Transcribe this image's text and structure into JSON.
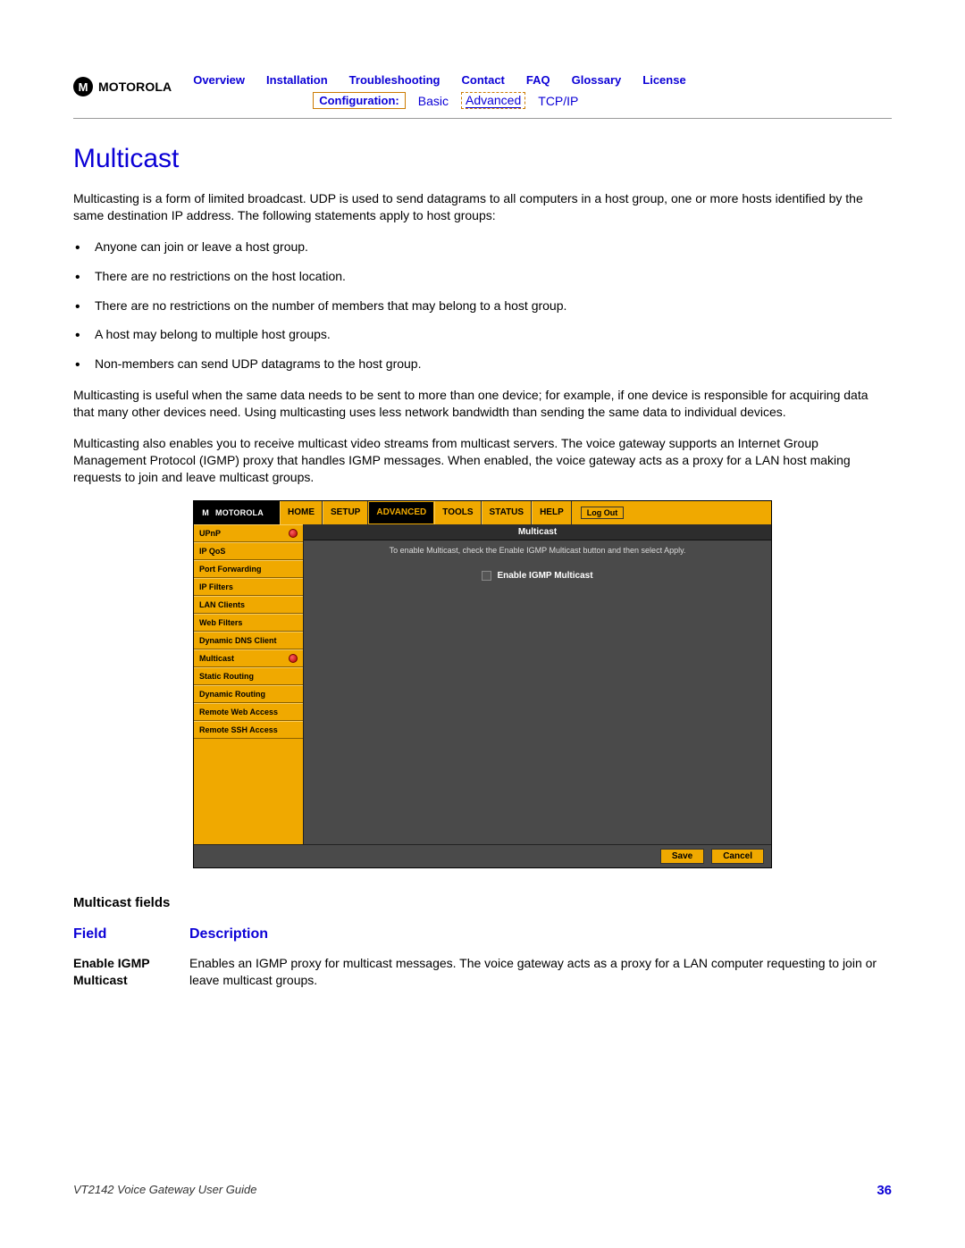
{
  "logo_text": "MOTOROLA",
  "nav_row1": {
    "overview": "Overview",
    "installation": "Installation",
    "troubleshooting": "Troubleshooting",
    "contact": "Contact",
    "faq": "FAQ",
    "glossary": "Glossary",
    "license": "License"
  },
  "nav_row2": {
    "configuration": "Configuration:",
    "basic": "Basic",
    "advanced": "Advanced",
    "tcpip": "TCP/IP"
  },
  "section_title": "Multicast",
  "para1": "Multicasting is a form of limited broadcast. UDP is used to send datagrams to all computers in a host group, one or more hosts identified by the same destination IP address. The following statements apply to host groups:",
  "bullets": [
    "Anyone can join or leave a host group.",
    "There are no restrictions on the host location.",
    "There are no restrictions on the number of members that may belong to a host group.",
    "A host may belong to multiple host groups.",
    "Non-members can send UDP datagrams to the host group."
  ],
  "para2": "Multicasting is useful when the same data needs to be sent to more than one device; for example, if one device is responsible for acquiring data that many other devices need. Using multicasting uses less network bandwidth than sending the same data to individual devices.",
  "para3": "Multicasting also enables you to receive multicast video streams from multicast servers. The voice gateway supports an Internet Group Management Protocol (IGMP) proxy that handles IGMP messages. When enabled, the voice gateway acts as a proxy for a LAN host making requests to join and leave multicast groups.",
  "screenshot": {
    "logo": "MOTOROLA",
    "tabs": [
      "HOME",
      "SETUP",
      "ADVANCED",
      "TOOLS",
      "STATUS",
      "HELP"
    ],
    "active_tab_index": 2,
    "logout": "Log Out",
    "sidebar": [
      {
        "label": "UPnP",
        "dot": true
      },
      {
        "label": "IP QoS",
        "dot": false
      },
      {
        "label": "Port Forwarding",
        "dot": false
      },
      {
        "label": "IP Filters",
        "dot": false
      },
      {
        "label": "LAN Clients",
        "dot": false
      },
      {
        "label": "Web Filters",
        "dot": false
      },
      {
        "label": "Dynamic DNS Client",
        "dot": false
      },
      {
        "label": "Multicast",
        "dot": true
      },
      {
        "label": "Static Routing",
        "dot": false
      },
      {
        "label": "Dynamic Routing",
        "dot": false
      },
      {
        "label": "Remote Web Access",
        "dot": false
      },
      {
        "label": "Remote SSH Access",
        "dot": false
      }
    ],
    "panel_title": "Multicast",
    "panel_desc": "To enable Multicast, check the Enable IGMP Multicast button and then select Apply.",
    "checkbox_label": "Enable IGMP Multicast",
    "save": "Save",
    "cancel": "Cancel"
  },
  "fields_title": "Multicast fields",
  "fields_header": {
    "field": "Field",
    "description": "Description"
  },
  "fields": [
    {
      "name": "Enable IGMP Multicast",
      "desc": "Enables an IGMP proxy for multicast messages. The voice gateway acts as a proxy for a LAN computer requesting to join or leave multicast groups."
    }
  ],
  "footer": {
    "title": "VT2142 Voice Gateway User Guide",
    "page": "36"
  },
  "colors": {
    "link_blue": "#0b00d6",
    "amber": "#f0a900",
    "dark_gray": "#4a4a4a"
  }
}
